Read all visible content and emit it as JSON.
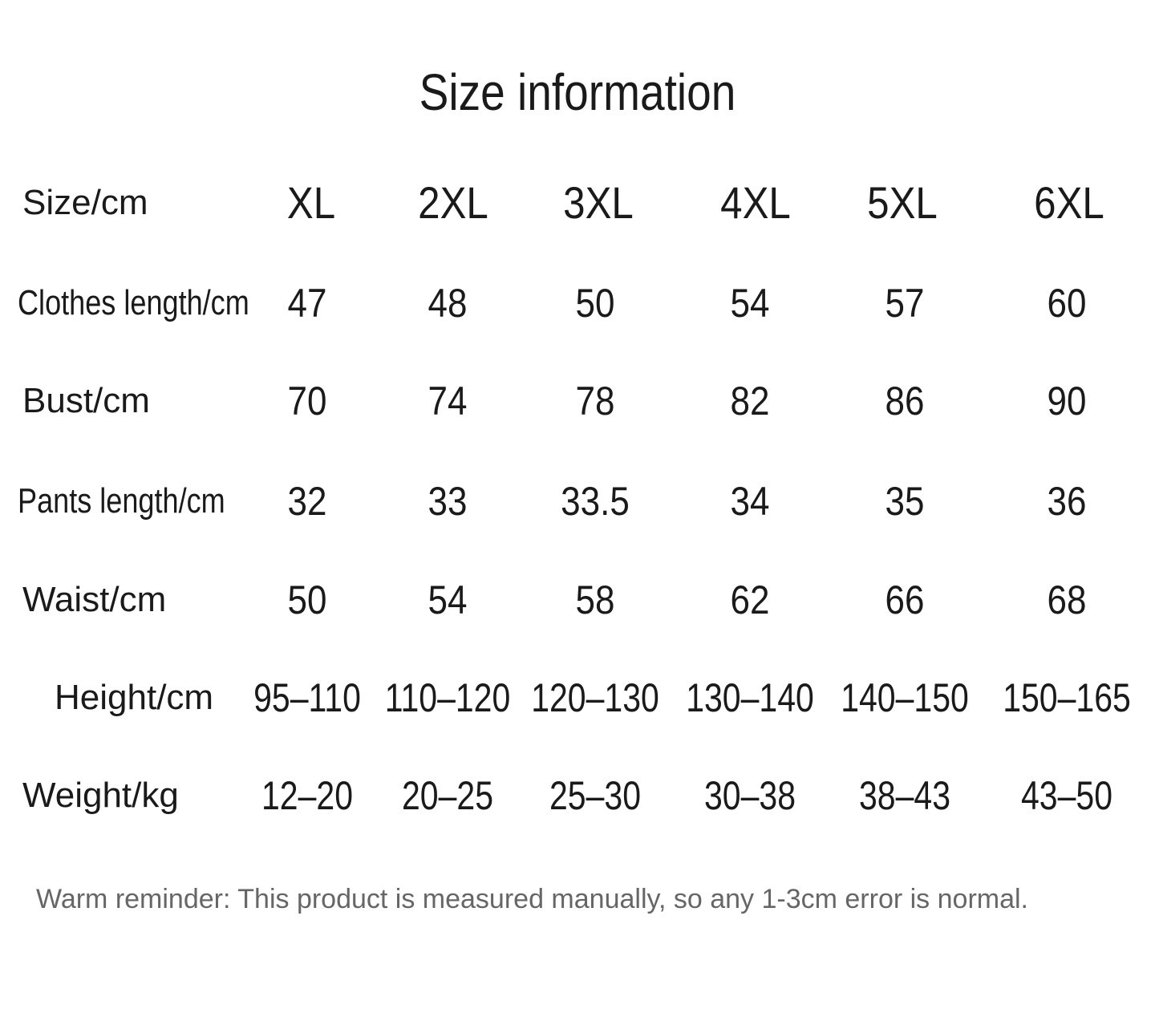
{
  "title": "Size information",
  "table": {
    "header": {
      "label": "Size/cm",
      "sizes": [
        "XL",
        "2XL",
        "3XL",
        "4XL",
        "5XL",
        "6XL"
      ]
    },
    "rows": [
      {
        "label": "Clothes length/cm",
        "values": [
          "47",
          "48",
          "50",
          "54",
          "57",
          "60"
        ]
      },
      {
        "label": "Bust/cm",
        "values": [
          "70",
          "74",
          "78",
          "82",
          "86",
          "90"
        ]
      },
      {
        "label": "Pants length/cm",
        "values": [
          "32",
          "33",
          "33.5",
          "34",
          "35",
          "36"
        ]
      },
      {
        "label": "Waist/cm",
        "values": [
          "50",
          "54",
          "58",
          "62",
          "66",
          "68"
        ]
      },
      {
        "label": "Height/cm",
        "values": [
          "95–110",
          "110–120",
          "120–130",
          "130–140",
          "140–150",
          "150–165"
        ]
      },
      {
        "label": "Weight/kg",
        "values": [
          "12–20",
          "20–25",
          "25–30",
          "30–38",
          "38–43",
          "43–50"
        ]
      }
    ]
  },
  "note": "Warm reminder: This product is measured manually, so any 1-3cm error is normal."
}
